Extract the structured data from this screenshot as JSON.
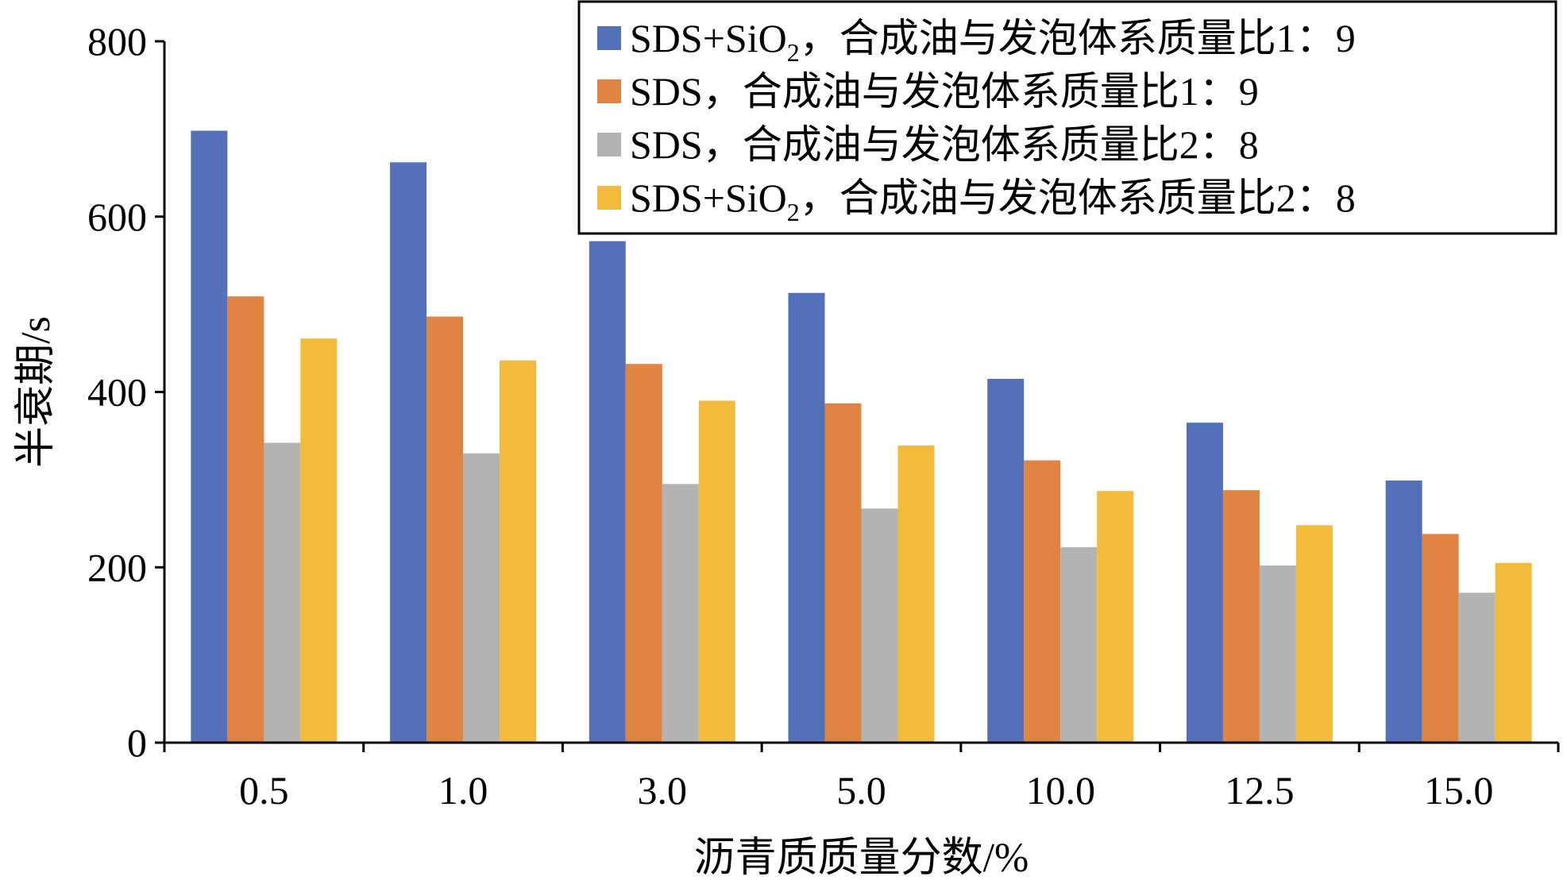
{
  "chart_data": {
    "type": "bar",
    "title": "",
    "xlabel": "沥青质质量分数/%",
    "ylabel": "半衰期/s",
    "categories": [
      "0.5",
      "1.0",
      "3.0",
      "5.0",
      "10.0",
      "12.5",
      "15.0"
    ],
    "ylim": [
      0,
      800
    ],
    "yticks": [
      "0",
      "200",
      "400",
      "600",
      "800"
    ],
    "grid": false,
    "legend_position": "top-right",
    "series": [
      {
        "name_main": "SDS+SiO",
        "name_sub": "2",
        "name_rest": "，合成油与发泡体系质量比1：9",
        "name": "SDS+SiO2，合成油与发泡体系质量比1：9",
        "color": "#5470b8",
        "values": [
          698,
          662,
          572,
          513,
          415,
          365,
          299
        ]
      },
      {
        "name_main": "SDS，合成油与发泡体系质量比1：9",
        "name_sub": "",
        "name_rest": "",
        "name": "SDS，合成油与发泡体系质量比1：9",
        "color": "#e08443",
        "values": [
          509,
          486,
          432,
          387,
          322,
          288,
          238
        ]
      },
      {
        "name_main": "SDS，合成油与发泡体系质量比2：8",
        "name_sub": "",
        "name_rest": "",
        "name": "SDS，合成油与发泡体系质量比2：8",
        "color": "#b3b3b3",
        "values": [
          342,
          330,
          295,
          267,
          223,
          202,
          171
        ]
      },
      {
        "name_main": "SDS+SiO",
        "name_sub": "2",
        "name_rest": "，合成油与发泡体系质量比2：8",
        "name": "SDS+SiO2，合成油与发泡体系质量比2：8",
        "color": "#f2bb3c",
        "values": [
          461,
          436,
          390,
          339,
          287,
          248,
          205
        ]
      }
    ]
  }
}
